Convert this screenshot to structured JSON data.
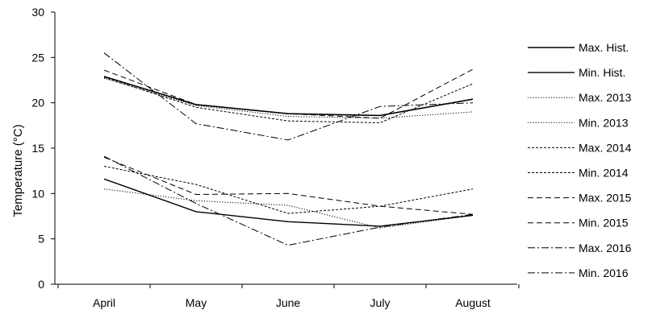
{
  "chart_data": {
    "type": "line",
    "title": "",
    "xlabel": "",
    "ylabel": "Temperature  (°C)",
    "ylim": [
      0,
      30
    ],
    "yticks": [
      0,
      5,
      10,
      15,
      20,
      25,
      30
    ],
    "grid": false,
    "legend_position": "right",
    "categories": [
      "April",
      "May",
      "June",
      "July",
      "August"
    ],
    "series": [
      {
        "name": "Max. Hist.",
        "values": [
          22.9,
          19.8,
          18.8,
          18.6,
          20.4
        ],
        "dash": "solid",
        "width": 1.6
      },
      {
        "name": "Min. Hist.",
        "values": [
          11.6,
          8.0,
          6.9,
          6.4,
          7.6
        ],
        "dash": "solid",
        "width": 1.4
      },
      {
        "name": "Max. 2013",
        "values": [
          22.7,
          19.7,
          18.5,
          18.3,
          19.0
        ],
        "dash": "dot",
        "width": 1.0
      },
      {
        "name": "Min. 2013",
        "values": [
          10.5,
          9.2,
          8.7,
          6.2,
          7.6
        ],
        "dash": "dot",
        "width": 1.0
      },
      {
        "name": "Max. 2014",
        "values": [
          22.8,
          19.5,
          18.0,
          17.8,
          22.1
        ],
        "dash": "shortdash",
        "width": 1.0
      },
      {
        "name": "Min. 2014",
        "values": [
          13.0,
          11.0,
          7.8,
          8.6,
          10.5
        ],
        "dash": "shortdash",
        "width": 1.0
      },
      {
        "name": "Max. 2015",
        "values": [
          23.6,
          19.8,
          18.8,
          18.3,
          23.7
        ],
        "dash": "longdash",
        "width": 1.0
      },
      {
        "name": "Min. 2015",
        "values": [
          14.0,
          9.9,
          10.0,
          8.6,
          7.7
        ],
        "dash": "longdash",
        "width": 1.0
      },
      {
        "name": "Max. 2016",
        "values": [
          25.5,
          17.7,
          15.9,
          19.6,
          20.0
        ],
        "dash": "dashdot",
        "width": 1.0
      },
      {
        "name": "Min. 2016",
        "values": [
          14.1,
          8.9,
          4.3,
          6.3,
          7.7
        ],
        "dash": "dashdot",
        "width": 1.0
      }
    ]
  }
}
